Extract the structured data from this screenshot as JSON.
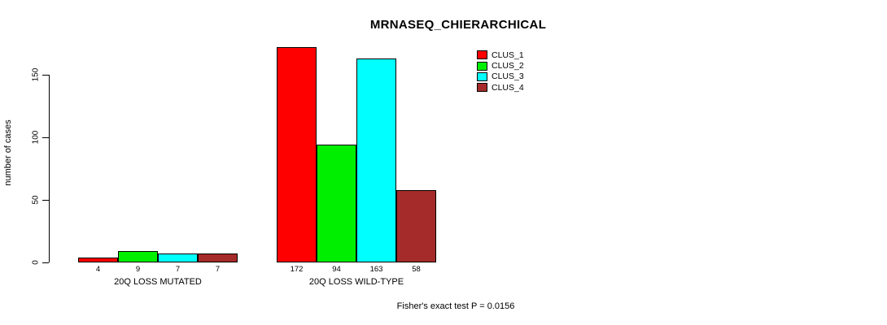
{
  "title": "MRNASEQ_CHIERARCHICAL",
  "footer": "Fisher's exact test P = 0.0156",
  "y_axis": {
    "label": "number of cases",
    "ticks": [
      0,
      50,
      100,
      150
    ]
  },
  "legend": {
    "position": "top-right",
    "items": [
      {
        "label": "CLUS_1",
        "color": "#FF0000"
      },
      {
        "label": "CLUS_2",
        "color": "#00EE00"
      },
      {
        "label": "CLUS_3",
        "color": "#00FFFF"
      },
      {
        "label": "CLUS_4",
        "color": "#A52A2A"
      }
    ]
  },
  "chart_data": {
    "type": "bar",
    "title": "MRNASEQ_CHIERARCHICAL",
    "xlabel": "",
    "ylabel": "number of cases",
    "categories": [
      "20Q LOSS MUTATED",
      "20Q LOSS WILD-TYPE"
    ],
    "series": [
      {
        "name": "CLUS_1",
        "color": "#FF0000",
        "values": [
          4,
          172
        ]
      },
      {
        "name": "CLUS_2",
        "color": "#00EE00",
        "values": [
          9,
          94
        ]
      },
      {
        "name": "CLUS_3",
        "color": "#00FFFF",
        "values": [
          7,
          163
        ]
      },
      {
        "name": "CLUS_4",
        "color": "#A52A2A",
        "values": [
          7,
          58
        ]
      }
    ],
    "axis_ticks": [
      0,
      50,
      100,
      150
    ],
    "ylim": [
      0,
      175
    ],
    "grid": false,
    "legend_position": "top-right",
    "annotation": "Fisher's exact test P = 0.0156"
  }
}
